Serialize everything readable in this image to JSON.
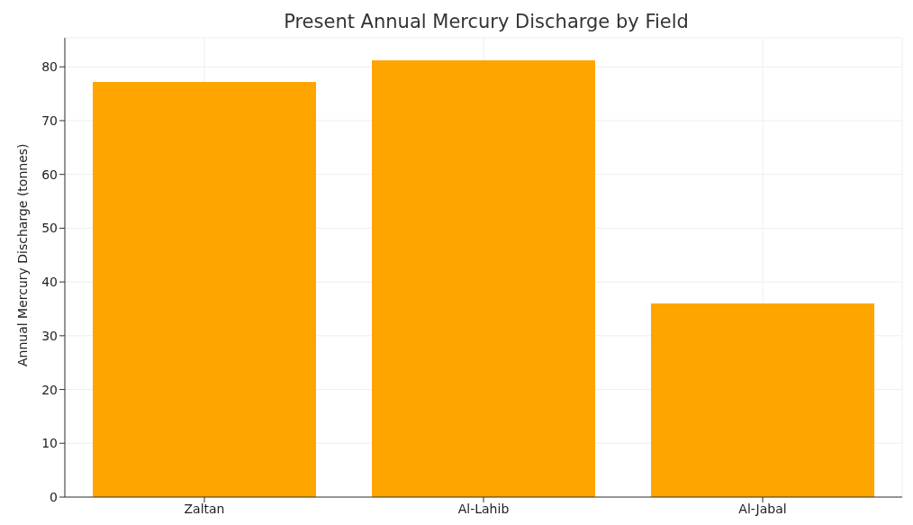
{
  "chart_data": {
    "type": "bar",
    "title": "Present Annual Mercury Discharge by Field",
    "ylabel": "Annual Mercury Discharge (tonnes)",
    "categories": [
      "Zaltan",
      "Al-Lahib",
      "Al-Jabal"
    ],
    "values": [
      77.2,
      81.2,
      36
    ],
    "color": "#ffa500",
    "ylim": [
      0,
      85.4
    ],
    "yticks": [
      0,
      10,
      20,
      30,
      40,
      50,
      60,
      70,
      80
    ],
    "grid": true
  }
}
